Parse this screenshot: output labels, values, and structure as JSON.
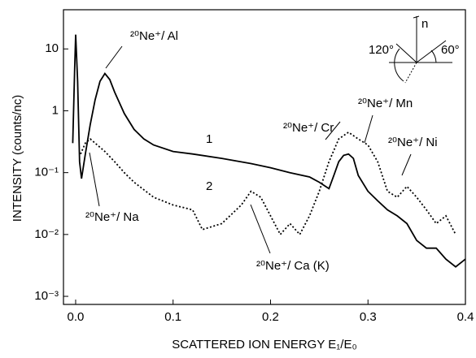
{
  "chart_data": {
    "type": "line",
    "x_label": "SCATTERED ION ENERGY E₁/E₀",
    "y_label": "INTENSITY (counts/nc)",
    "log_scale_y": true,
    "grid": false,
    "xlim": [
      -0.0125,
      0.4
    ],
    "ylim": [
      0.00074,
      43
    ],
    "xticks": [
      {
        "value": 0,
        "label": "0.0"
      },
      0.1,
      0.2,
      0.3,
      0.4
    ],
    "yticks": [
      {
        "value": 0.001,
        "label": "10⁻³"
      },
      {
        "value": 0.01,
        "label": "10⁻²"
      },
      {
        "value": 0.1,
        "label": "10⁻¹"
      },
      1,
      10
    ],
    "series": [
      {
        "name": "1",
        "color": "#000000",
        "dash": "solid",
        "x": [
          -0.003,
          -0.001,
          0.0,
          0.002,
          0.004,
          0.006,
          0.01,
          0.015,
          0.02,
          0.025,
          0.03,
          0.035,
          0.04,
          0.05,
          0.06,
          0.07,
          0.08,
          0.1,
          0.12,
          0.15,
          0.18,
          0.2,
          0.22,
          0.24,
          0.25,
          0.26,
          0.265,
          0.27,
          0.275,
          0.28,
          0.285,
          0.29,
          0.3,
          0.31,
          0.32,
          0.33,
          0.34,
          0.35,
          0.36,
          0.37,
          0.38,
          0.39,
          0.4
        ],
        "values": [
          0.3,
          5,
          17,
          3,
          0.15,
          0.08,
          0.2,
          0.6,
          1.5,
          3,
          4,
          3.2,
          2,
          0.9,
          0.5,
          0.35,
          0.28,
          0.22,
          0.2,
          0.17,
          0.14,
          0.12,
          0.1,
          0.085,
          0.07,
          0.055,
          0.09,
          0.15,
          0.19,
          0.2,
          0.17,
          0.09,
          0.05,
          0.035,
          0.025,
          0.02,
          0.015,
          0.008,
          0.006,
          0.006,
          0.004,
          0.003,
          0.004
        ]
      },
      {
        "name": "2",
        "color": "#000000",
        "dash": "dotted",
        "x": [
          0.005,
          0.01,
          0.015,
          0.02,
          0.03,
          0.04,
          0.05,
          0.06,
          0.08,
          0.1,
          0.12,
          0.13,
          0.15,
          0.17,
          0.18,
          0.19,
          0.2,
          0.21,
          0.22,
          0.23,
          0.24,
          0.25,
          0.26,
          0.27,
          0.28,
          0.29,
          0.3,
          0.31,
          0.32,
          0.33,
          0.34,
          0.35,
          0.36,
          0.37,
          0.38,
          0.39
        ],
        "values": [
          0.2,
          0.3,
          0.35,
          0.3,
          0.22,
          0.15,
          0.1,
          0.07,
          0.04,
          0.03,
          0.025,
          0.012,
          0.015,
          0.03,
          0.05,
          0.04,
          0.02,
          0.01,
          0.015,
          0.01,
          0.02,
          0.05,
          0.15,
          0.35,
          0.45,
          0.35,
          0.28,
          0.15,
          0.05,
          0.04,
          0.06,
          0.04,
          0.025,
          0.015,
          0.02,
          0.01
        ]
      }
    ],
    "annotations": [
      "²⁰Ne⁺/ Al",
      "²⁰Ne⁺/ Na",
      "²⁰Ne⁺/ Ca (K)",
      "²⁰Ne⁺/ Cr",
      "²⁰Ne⁺/ Mn",
      "²⁰Ne⁺/ Ni"
    ],
    "inset": {
      "normal": "n",
      "angle_left": "120°",
      "angle_right": "60°"
    }
  }
}
